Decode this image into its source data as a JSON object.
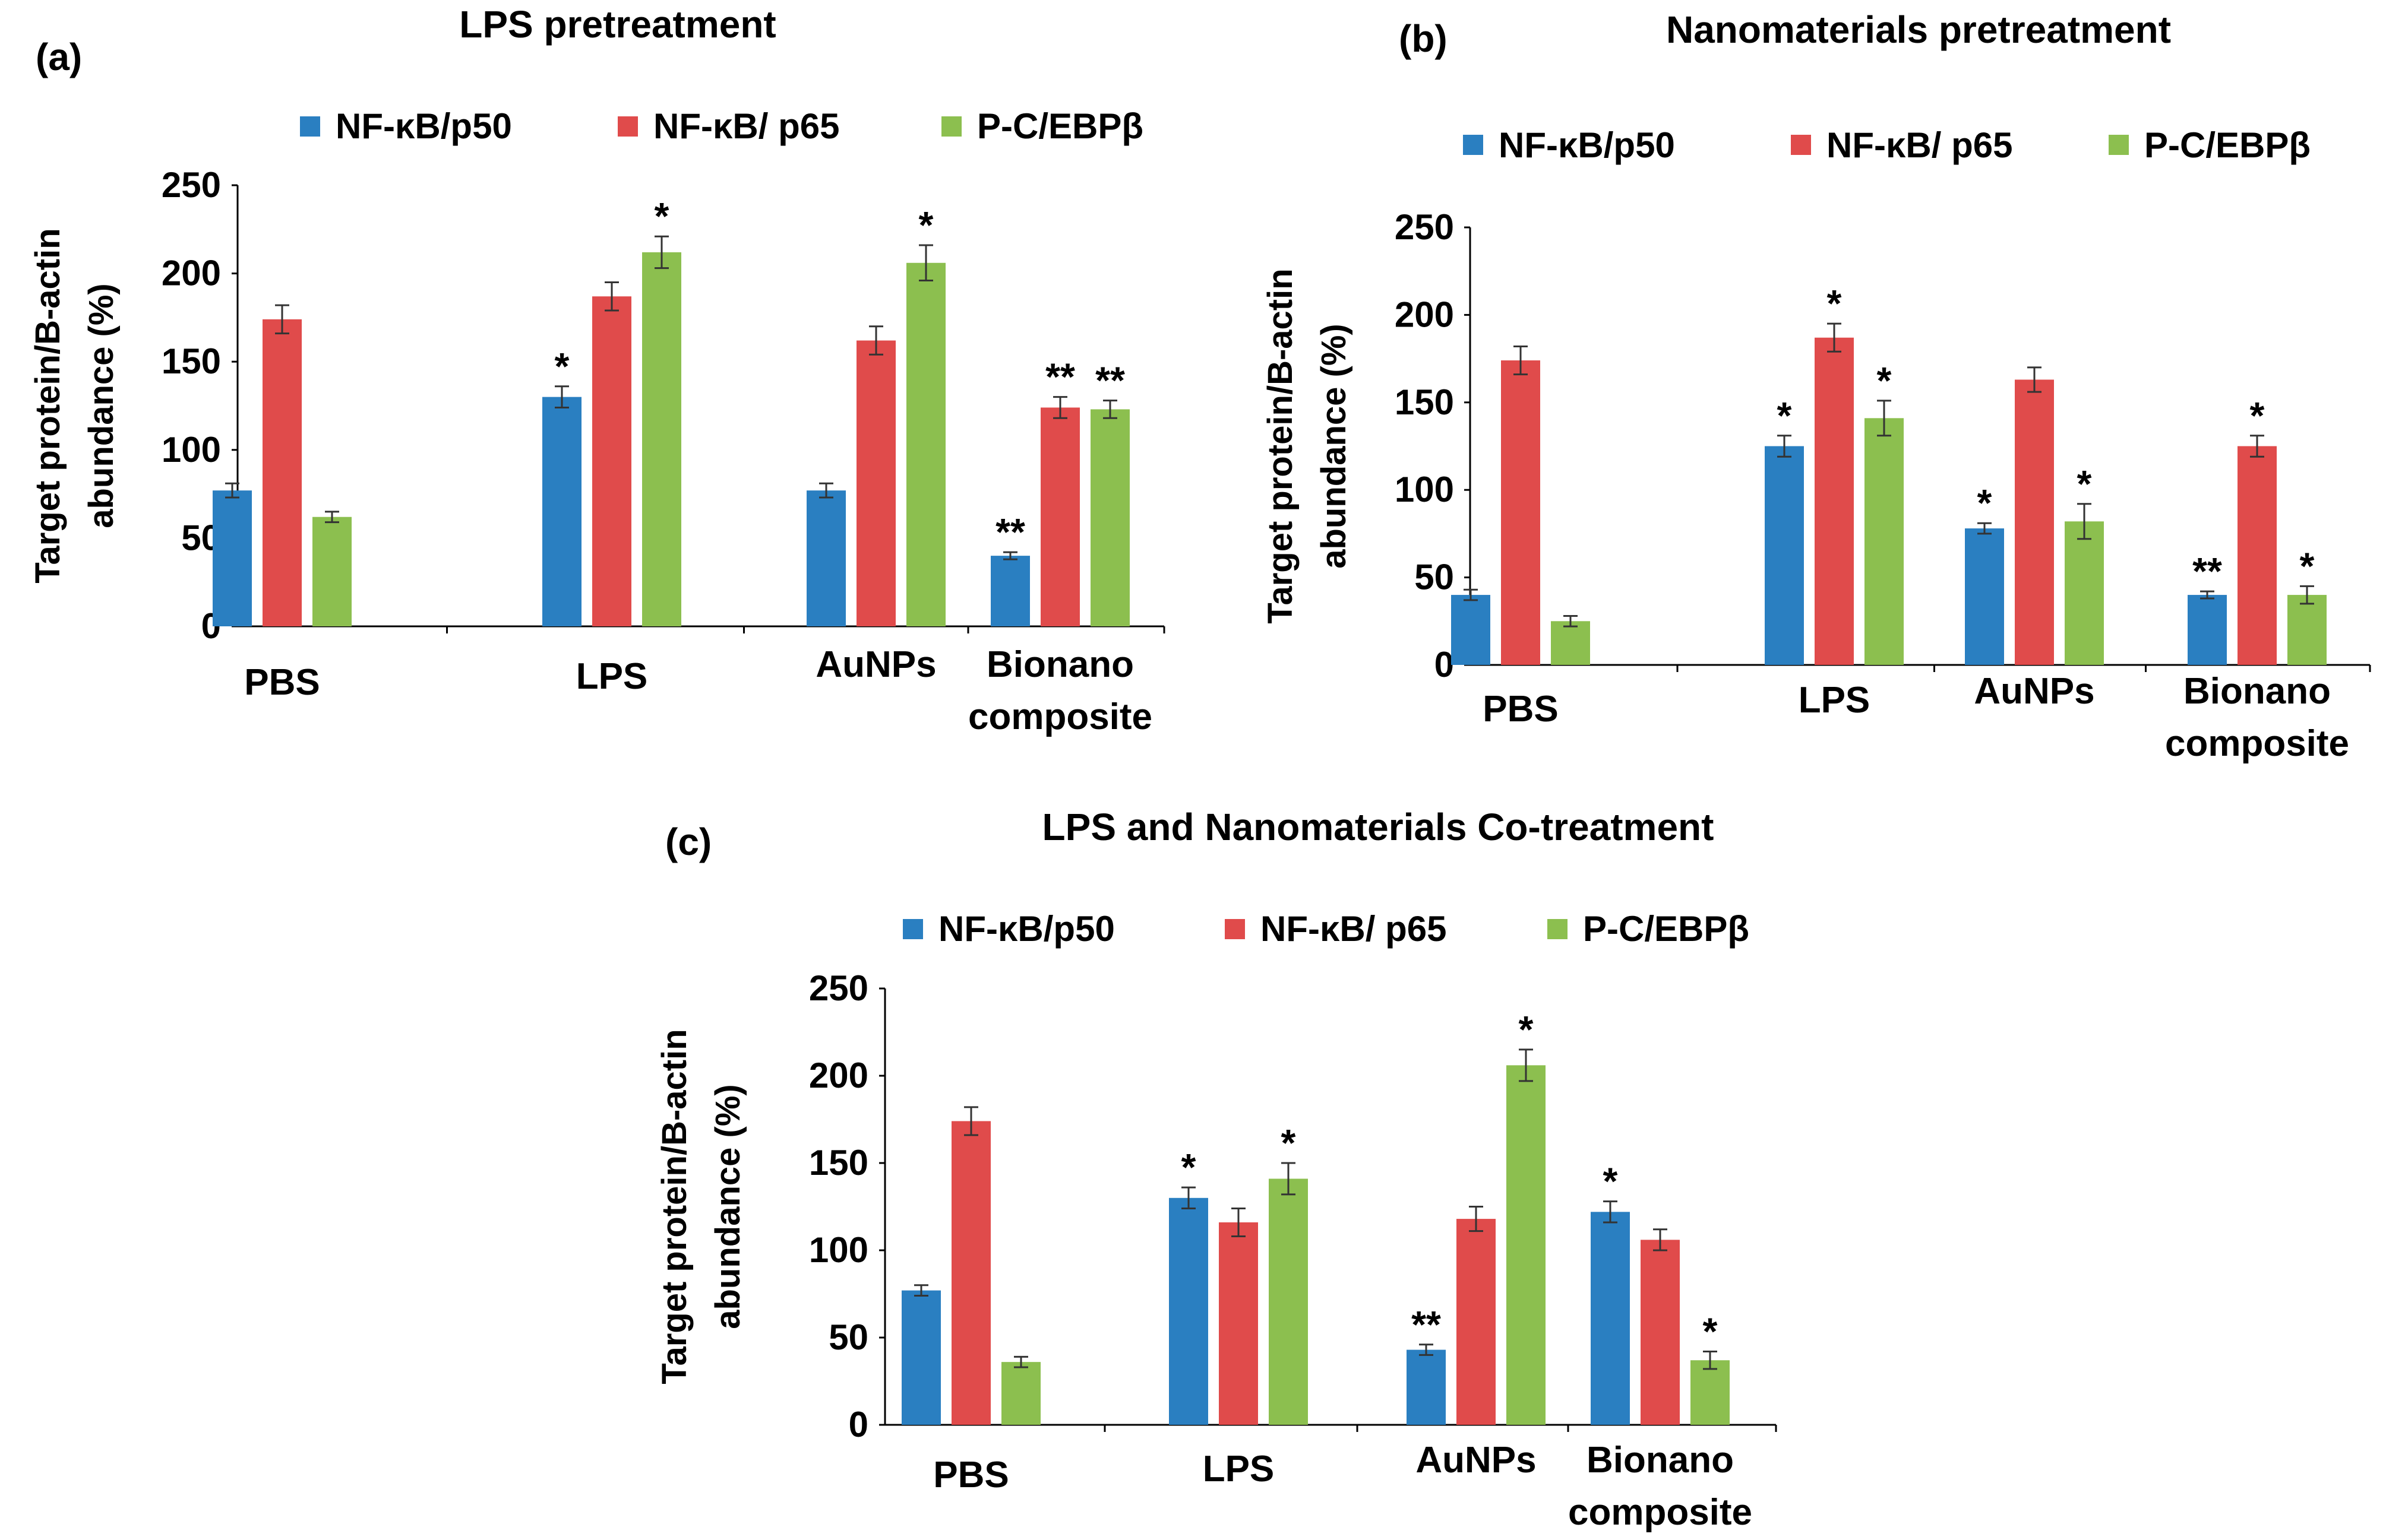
{
  "colors": {
    "p50": "#2a7fc1",
    "p65": "#e04b4b",
    "cebp": "#8cbf4f",
    "axis": "#000000"
  },
  "chart_data": [
    {
      "id": "a",
      "type": "bar",
      "panel_label": "(a)",
      "title": "LPS pretreatment",
      "ylabel_line1": "Target protein/B-actin",
      "ylabel_line2": "abundance   (%)",
      "ylim": [
        0,
        250
      ],
      "yticks": [
        "0",
        "50",
        "100",
        "150",
        "200",
        "250"
      ],
      "categories": [
        [
          "PBS"
        ],
        [
          "LPS"
        ],
        [
          "AuNPs"
        ],
        [
          "Bionano",
          "composite"
        ]
      ],
      "series": [
        {
          "name": "NF-κB/p50",
          "values": [
            77,
            130,
            77,
            40
          ],
          "errors": [
            4,
            6,
            4,
            2
          ],
          "sig": [
            "",
            "*",
            "",
            "**"
          ]
        },
        {
          "name": "NF-κB/ p65",
          "values": [
            174,
            187,
            162,
            124
          ],
          "errors": [
            8,
            8,
            8,
            6
          ],
          "sig": [
            "",
            "",
            "",
            "**"
          ]
        },
        {
          "name": "P-C/EBPβ",
          "values": [
            62,
            212,
            206,
            123
          ],
          "errors": [
            3,
            9,
            10,
            5
          ],
          "sig": [
            "",
            "*",
            "*",
            "**"
          ]
        }
      ]
    },
    {
      "id": "b",
      "type": "bar",
      "panel_label": "(b)",
      "title": "Nanomaterials pretreatment",
      "ylabel_line1": "Target protein/B-actin",
      "ylabel_line2": "abundance   (%)",
      "ylim": [
        0,
        250
      ],
      "yticks": [
        "0",
        "50",
        "100",
        "150",
        "200",
        "250"
      ],
      "categories": [
        [
          "PBS"
        ],
        [
          "LPS"
        ],
        [
          "AuNPs"
        ],
        [
          "Bionano",
          "composite"
        ]
      ],
      "series": [
        {
          "name": "NF-κB/p50",
          "values": [
            40,
            125,
            78,
            40
          ],
          "errors": [
            3,
            6,
            3,
            2
          ],
          "sig": [
            "",
            "*",
            "*",
            "**"
          ]
        },
        {
          "name": "NF-κB/ p65",
          "values": [
            174,
            187,
            163,
            125
          ],
          "errors": [
            8,
            8,
            7,
            6
          ],
          "sig": [
            "",
            "*",
            "",
            "*"
          ]
        },
        {
          "name": "P-C/EBPβ",
          "values": [
            25,
            141,
            82,
            40
          ],
          "errors": [
            3,
            10,
            10,
            5
          ],
          "sig": [
            "",
            "*",
            "*",
            "*"
          ]
        }
      ]
    },
    {
      "id": "c",
      "type": "bar",
      "panel_label": "(c)",
      "title": "LPS and Nanomaterials Co-treatment",
      "ylabel_line1": "Target protein/B-actin",
      "ylabel_line2": "abundance   (%)",
      "ylim": [
        0,
        250
      ],
      "yticks": [
        "0",
        "50",
        "100",
        "150",
        "200",
        "250"
      ],
      "categories": [
        [
          "PBS"
        ],
        [
          "LPS"
        ],
        [
          "AuNPs"
        ],
        [
          "Bionano",
          "composite"
        ]
      ],
      "series": [
        {
          "name": "NF-κB/p50",
          "values": [
            77,
            130,
            43,
            122
          ],
          "errors": [
            3,
            6,
            3,
            6
          ],
          "sig": [
            "",
            "*",
            "**",
            "*"
          ]
        },
        {
          "name": "NF-κB/ p65",
          "values": [
            174,
            116,
            118,
            106
          ],
          "errors": [
            8,
            8,
            7,
            6
          ],
          "sig": [
            "",
            "",
            "",
            ""
          ]
        },
        {
          "name": "P-C/EBPβ",
          "values": [
            36,
            141,
            206,
            37
          ],
          "errors": [
            3,
            9,
            9,
            5
          ],
          "sig": [
            "",
            "*",
            "*",
            "*"
          ]
        }
      ]
    }
  ]
}
